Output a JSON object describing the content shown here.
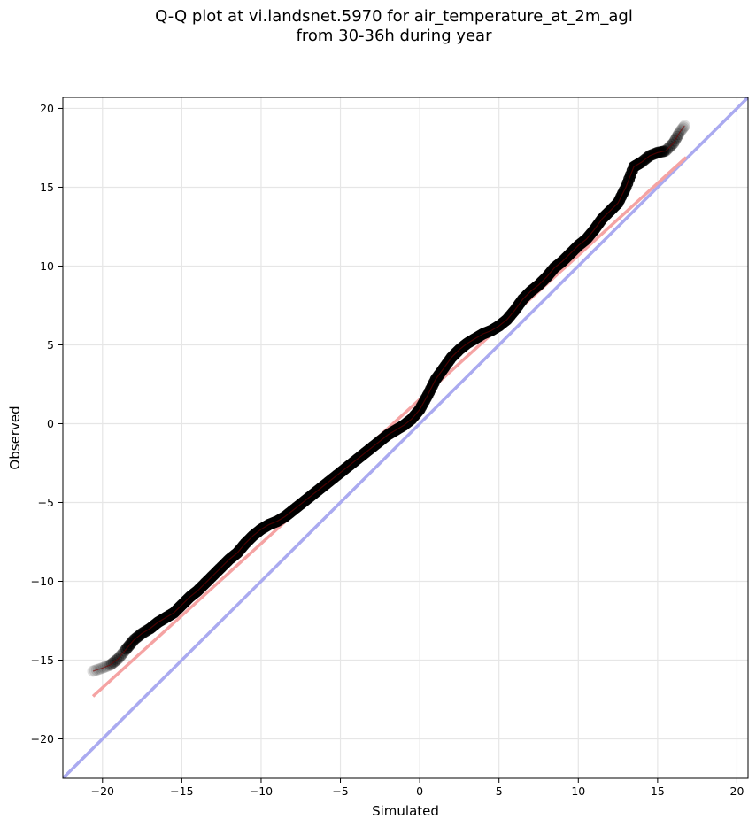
{
  "chart_data": {
    "type": "scatter",
    "title_lines": [
      "Q-Q plot at vi.landsnet.5970 for air_temperature_at_2m_agl",
      "from 30-36h during year"
    ],
    "xlabel": "Simulated",
    "ylabel": "Observed",
    "xlim": [
      -22.5,
      20.7
    ],
    "ylim": [
      -22.5,
      20.7
    ],
    "xticks": [
      -20,
      -15,
      -10,
      -5,
      0,
      5,
      10,
      15,
      20
    ],
    "yticks": [
      -20,
      -15,
      -10,
      -5,
      0,
      5,
      10,
      15,
      20
    ],
    "grid": true,
    "reference_line": {
      "color": "#aaaaf0",
      "points": [
        [
          -22.5,
          -22.5
        ],
        [
          20.7,
          20.7
        ]
      ]
    },
    "fit_line": {
      "color": "#f5a3a3",
      "points": [
        [
          -20.6,
          -17.3
        ],
        [
          16.8,
          16.9
        ]
      ]
    },
    "quantile_curve": {
      "color": "#000000",
      "points": [
        [
          -20.6,
          -15.7
        ],
        [
          -20.0,
          -15.5
        ],
        [
          -19.5,
          -15.3
        ],
        [
          -19.0,
          -14.9
        ],
        [
          -18.5,
          -14.3
        ],
        [
          -18.0,
          -13.7
        ],
        [
          -17.5,
          -13.3
        ],
        [
          -17.0,
          -13.0
        ],
        [
          -16.5,
          -12.6
        ],
        [
          -16.0,
          -12.3
        ],
        [
          -15.5,
          -12.0
        ],
        [
          -15.0,
          -11.5
        ],
        [
          -14.5,
          -11.0
        ],
        [
          -14.0,
          -10.6
        ],
        [
          -13.5,
          -10.1
        ],
        [
          -13.0,
          -9.6
        ],
        [
          -12.5,
          -9.1
        ],
        [
          -12.0,
          -8.6
        ],
        [
          -11.5,
          -8.2
        ],
        [
          -11.0,
          -7.6
        ],
        [
          -10.5,
          -7.1
        ],
        [
          -10.0,
          -6.7
        ],
        [
          -9.5,
          -6.4
        ],
        [
          -9.0,
          -6.2
        ],
        [
          -8.5,
          -5.9
        ],
        [
          -8.0,
          -5.5
        ],
        [
          -7.5,
          -5.1
        ],
        [
          -7.0,
          -4.7
        ],
        [
          -6.5,
          -4.3
        ],
        [
          -6.0,
          -3.9
        ],
        [
          -5.5,
          -3.5
        ],
        [
          -5.0,
          -3.1
        ],
        [
          -4.5,
          -2.7
        ],
        [
          -4.0,
          -2.3
        ],
        [
          -3.5,
          -1.9
        ],
        [
          -3.0,
          -1.5
        ],
        [
          -2.5,
          -1.1
        ],
        [
          -2.0,
          -0.7
        ],
        [
          -1.5,
          -0.4
        ],
        [
          -1.0,
          -0.1
        ],
        [
          -0.5,
          0.3
        ],
        [
          0.0,
          0.9
        ],
        [
          0.5,
          1.8
        ],
        [
          1.0,
          2.8
        ],
        [
          1.5,
          3.5
        ],
        [
          2.0,
          4.2
        ],
        [
          2.5,
          4.7
        ],
        [
          3.0,
          5.1
        ],
        [
          3.5,
          5.4
        ],
        [
          4.0,
          5.7
        ],
        [
          4.5,
          5.9
        ],
        [
          5.0,
          6.2
        ],
        [
          5.5,
          6.6
        ],
        [
          6.0,
          7.2
        ],
        [
          6.5,
          7.9
        ],
        [
          7.0,
          8.4
        ],
        [
          7.5,
          8.8
        ],
        [
          8.0,
          9.3
        ],
        [
          8.5,
          9.9
        ],
        [
          9.0,
          10.3
        ],
        [
          9.5,
          10.8
        ],
        [
          10.0,
          11.3
        ],
        [
          10.5,
          11.7
        ],
        [
          11.0,
          12.3
        ],
        [
          11.5,
          13.0
        ],
        [
          12.0,
          13.5
        ],
        [
          12.5,
          14.0
        ],
        [
          13.0,
          15.0
        ],
        [
          13.5,
          16.3
        ],
        [
          14.0,
          16.6
        ],
        [
          14.5,
          17.0
        ],
        [
          15.0,
          17.2
        ],
        [
          15.5,
          17.3
        ],
        [
          16.0,
          17.8
        ],
        [
          16.4,
          18.5
        ],
        [
          16.7,
          18.9
        ]
      ]
    }
  }
}
